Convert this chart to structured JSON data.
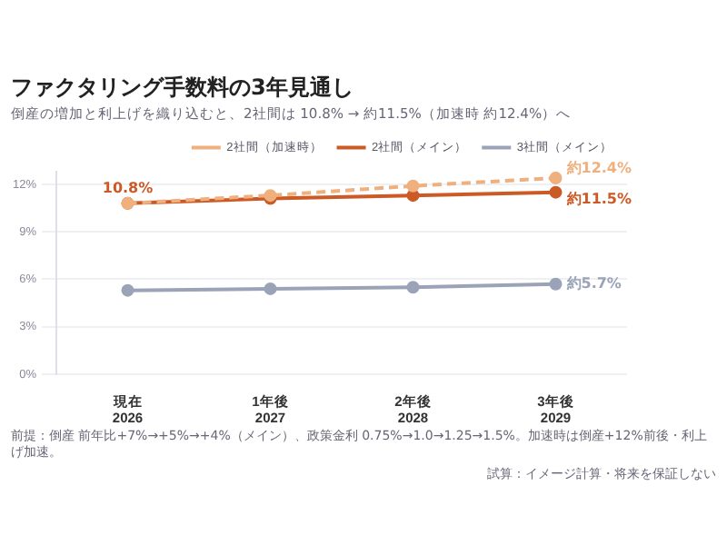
{
  "chart_data": {
    "type": "line",
    "title": "ファクタリング手数料の3年見通し",
    "subtitle": "倒産の増加と利上げを織り込むと、2社間は 10.8% → 約11.5%（加速時 約12.4%）へ",
    "categories": [
      "現在\n2026",
      "1年後\n2027",
      "2年後\n2028",
      "3年後\n2029"
    ],
    "series": [
      {
        "name": "2社間（加速時）",
        "color": "#efb07e",
        "values": [
          10.8,
          11.3,
          11.9,
          12.4
        ],
        "line_style": "dashed",
        "value_labels": [
          null,
          null,
          null,
          "約12.4%"
        ]
      },
      {
        "name": "2社間（メイン）",
        "color": "#cc5a26",
        "values": [
          10.8,
          11.1,
          11.3,
          11.5
        ],
        "line_style": "solid",
        "value_labels": [
          "10.8%",
          null,
          null,
          "約11.5%"
        ]
      },
      {
        "name": "3社間（メイン）",
        "color": "#9aa3b7",
        "values": [
          5.3,
          5.4,
          5.5,
          5.7
        ],
        "line_style": "solid",
        "value_labels": [
          null,
          null,
          null,
          "約5.7%"
        ]
      }
    ],
    "ylim": [
      0,
      12.8
    ],
    "yticks": [
      {
        "value": 0,
        "label": "0%"
      },
      {
        "value": 3,
        "label": "3%"
      },
      {
        "value": 6,
        "label": "6%"
      },
      {
        "value": 9,
        "label": "9%"
      },
      {
        "value": 12,
        "label": "12%"
      }
    ],
    "grid": "y",
    "legend": "top",
    "marker": "circle",
    "annotations": [
      "前提：倒産 前年比+7%→+5%→+4%（メイン）、政策金利 0.75%→1.0→1.25→1.5%。加速時は倒産+12%前後・利上げ加速。",
      "試算：イメージ計算・将来を保証しない"
    ]
  }
}
